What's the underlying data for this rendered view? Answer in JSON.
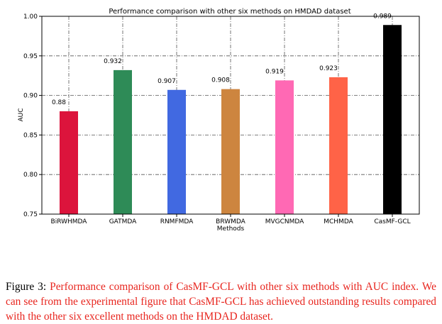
{
  "chart_data": {
    "type": "bar",
    "title": "Performance comparison with other six methods on HMDAD dataset",
    "xlabel": "Methods",
    "ylabel": "AUC",
    "ylim": [
      0.75,
      1.0
    ],
    "yticks": [
      "0.75",
      "0.80",
      "0.85",
      "0.90",
      "0.95",
      "1.00"
    ],
    "grid": true,
    "categories": [
      "BiRWHMDA",
      "GATMDA",
      "RNMFMDA",
      "BRWMDA",
      "MVGCNMDA",
      "MCHMDA",
      "CasMF-GCL"
    ],
    "values": [
      0.88,
      0.932,
      0.907,
      0.908,
      0.919,
      0.923,
      0.989
    ],
    "value_labels": [
      "0.88",
      "0.932",
      "0.907",
      "0.908",
      "0.919",
      "0.923",
      "0.989"
    ],
    "colors": [
      "#dc143c",
      "#2e8b57",
      "#4169e1",
      "#cd853f",
      "#ff69b4",
      "#ff6347",
      "#000000"
    ]
  },
  "caption": {
    "label": "Figure 3:",
    "text": "Performance comparison of CasMF-GCL with other six methods with AUC index. We can see from the experimental figure that CasMF-GCL has achieved outstanding results compared with the other six excellent methods on the HMDAD dataset."
  }
}
